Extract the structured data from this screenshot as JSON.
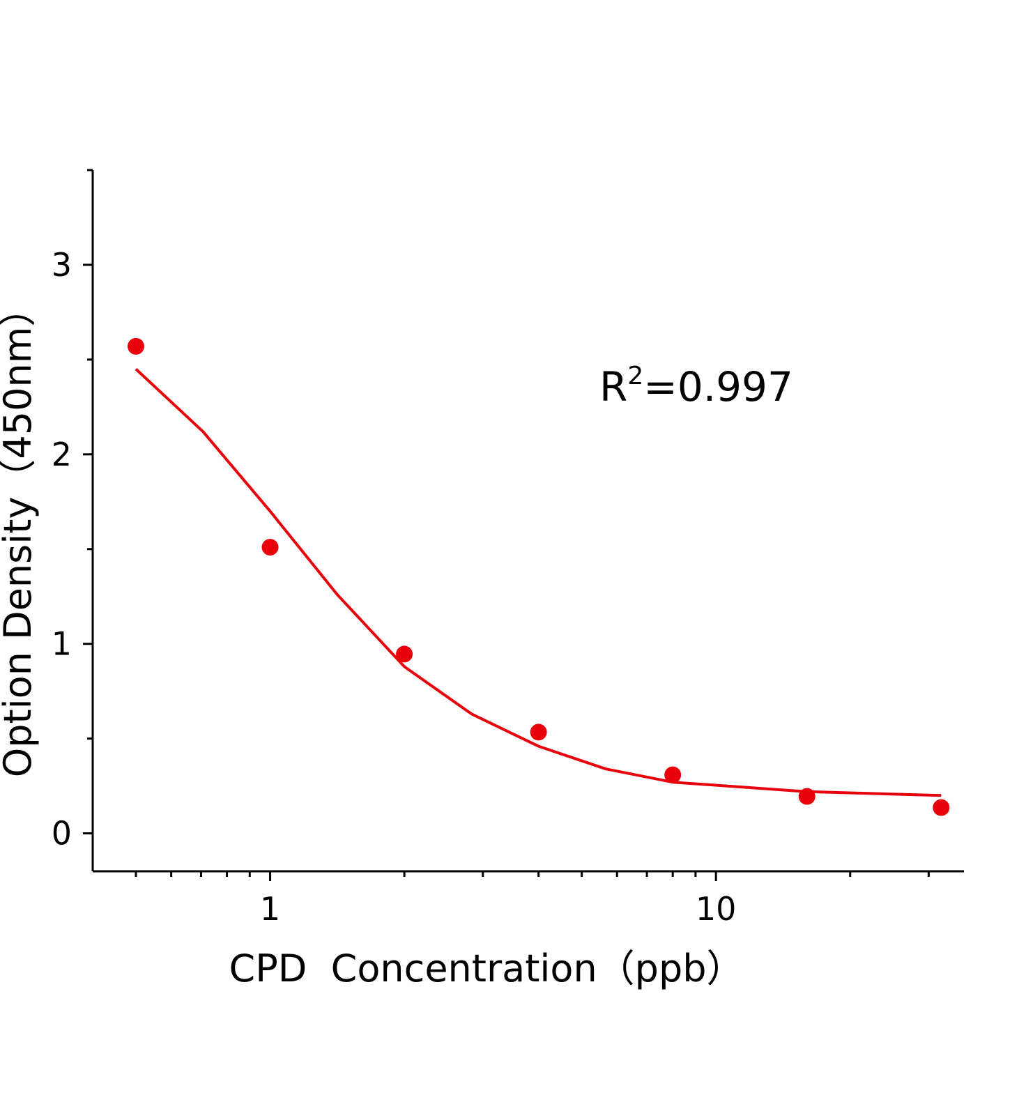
{
  "chart_data": {
    "type": "scatter",
    "x_label": "CPD  Concentration（ppb）",
    "y_label": "Option Density（450nm）",
    "annotation": {
      "base": "R",
      "sup": "2",
      "rest": "=0.997"
    },
    "x_log": true,
    "xlim": [
      0.4,
      36
    ],
    "ylim": [
      -0.2,
      3.5
    ],
    "xticks": [
      1,
      10
    ],
    "yticks": [
      0,
      1,
      2,
      3
    ],
    "xminorticks": [
      0.5,
      0.6,
      0.7,
      0.8,
      0.9,
      2,
      3,
      4,
      5,
      6,
      7,
      8,
      9,
      20,
      30
    ],
    "yminorticks": [
      0.5,
      1.5,
      2.5,
      3.5
    ],
    "series": [
      {
        "mode": "markers",
        "color": "#e8000b",
        "x": [
          0.5,
          1,
          2,
          4,
          8,
          16,
          32
        ],
        "values": [
          2.57,
          1.51,
          0.946,
          0.534,
          0.309,
          0.195,
          0.136
        ]
      },
      {
        "mode": "line",
        "color": "#e8000b",
        "x": [
          0.5,
          0.707,
          1,
          1.414,
          2,
          2.83,
          4,
          5.66,
          8,
          16,
          32
        ],
        "values": [
          2.45,
          2.12,
          1.7,
          1.26,
          0.88,
          0.63,
          0.46,
          0.34,
          0.27,
          0.22,
          0.2
        ]
      }
    ]
  }
}
